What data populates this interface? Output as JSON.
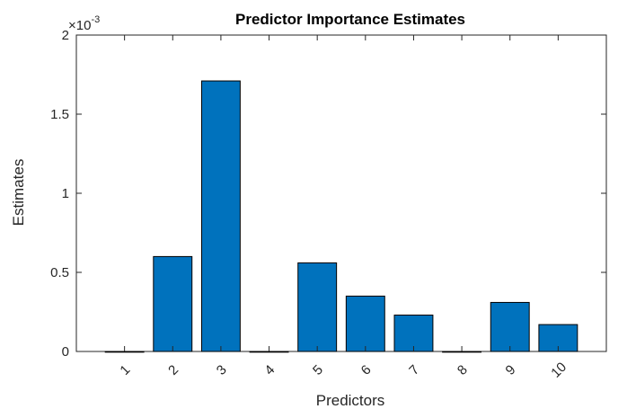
{
  "chart_data": {
    "type": "bar",
    "title": "Predictor Importance Estimates",
    "xlabel": "Predictors",
    "ylabel": "Estimates",
    "categories": [
      "1",
      "2",
      "3",
      "4",
      "5",
      "6",
      "7",
      "8",
      "9",
      "10"
    ],
    "values": [
      0.0,
      0.0006,
      0.00171,
      0.0,
      0.00056,
      0.00035,
      0.00023,
      0.0,
      0.00031,
      0.00017
    ],
    "ylim": [
      0,
      0.002
    ],
    "yticks": [
      0,
      0.0005,
      0.001,
      0.0015,
      0.002
    ],
    "ytick_labels": [
      "0",
      "0.5",
      "1",
      "1.5",
      "2"
    ],
    "y_exponent_base": "×10",
    "y_exponent_power": "-3",
    "bar_color": "#0072BD",
    "grid": false
  }
}
